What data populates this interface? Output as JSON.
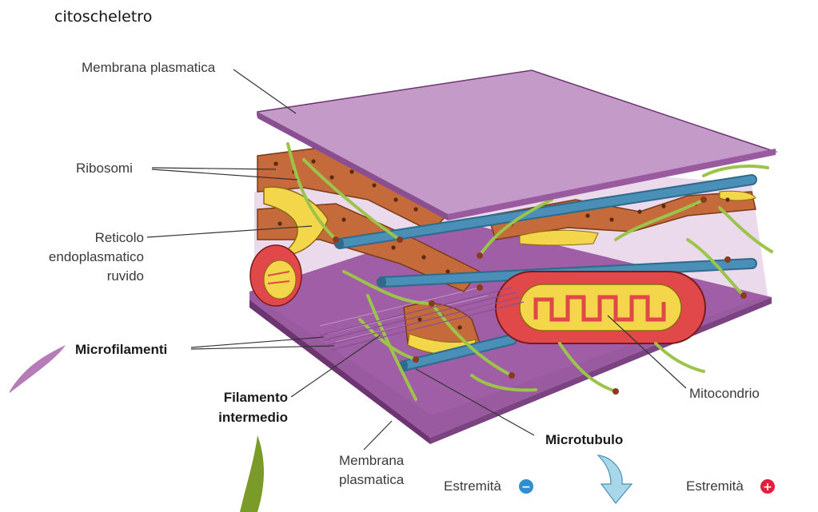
{
  "title": "citoscheletro",
  "labels": {
    "membrana_top": "Membrana plasmatica",
    "ribosomi": "Ribosomi",
    "reticolo_1": "Reticolo",
    "reticolo_2": "endoplasmatico",
    "reticolo_3": "ruvido",
    "microfilamenti": "Microfilamenti",
    "filamento_1": "Filamento",
    "filamento_2": "intermedio",
    "membrana_bottom_1": "Membrana",
    "membrana_bottom_2": "plasmatica",
    "microtubulo": "Microtubulo",
    "mitocondrio": "Mitocondrio",
    "estremita_minus": "Estremità",
    "estremita_plus": "Estremità"
  },
  "icons": {
    "minus_sign": "−",
    "plus_sign": "+"
  },
  "colors": {
    "membrane": "#c39ac8",
    "membrane_dark": "#8a4f90",
    "er": "#c56a3a",
    "er_lumen": "#f3d64a",
    "filament": "#9cc34a",
    "microtubule": "#4a8fb8",
    "mito": "#e0484a",
    "arrow": "#a9d7ea",
    "minus": "#2f8fd0",
    "plus": "#e0203a"
  }
}
